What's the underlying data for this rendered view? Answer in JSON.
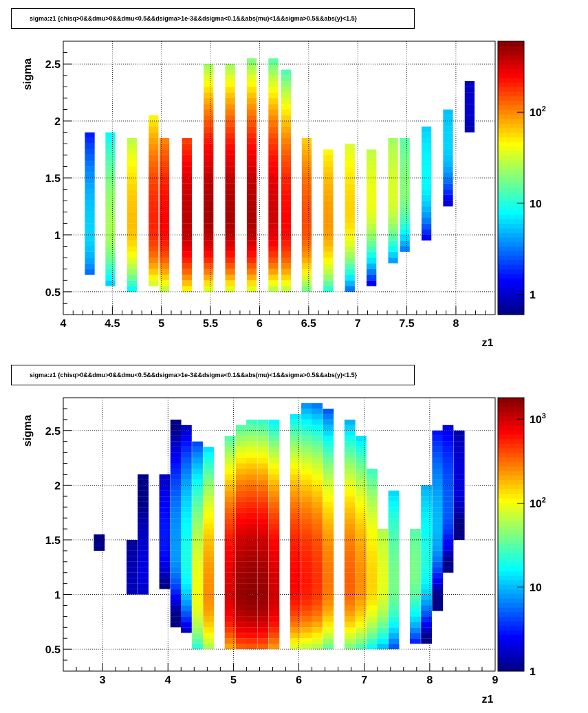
{
  "chart_data": [
    {
      "type": "heatmap",
      "title": "sigma:z1 {chisq>0&&dmu>0&&dmu<0.5&&dsigma>1e-3&&dsigma<0.1&&abs(mu)<1&&sigma>0.5&&abs(y)<1.5}",
      "xlabel": "z1",
      "ylabel": "sigma",
      "xlim": [
        4.0,
        8.4
      ],
      "ylim": [
        0.3,
        2.7
      ],
      "x_ticks": [
        "4",
        "4.5",
        "5",
        "5.5",
        "6",
        "6.5",
        "7",
        "7.5",
        "8"
      ],
      "y_ticks": [
        "0.5",
        "1",
        "1.5",
        "2",
        "2.5"
      ],
      "z_scale": "log",
      "zlim": [
        0.6,
        600
      ],
      "colorbar_ticks": [
        "1",
        "10",
        "10^2"
      ],
      "grid": true,
      "colormap": "jet",
      "columns": [
        {
          "x": 4.27,
          "sigma_min": 0.65,
          "sigma_max": 1.9,
          "peak_sigma": 1.0,
          "peak_count": 6
        },
        {
          "x": 4.48,
          "sigma_min": 0.55,
          "sigma_max": 1.9,
          "peak_sigma": 1.05,
          "peak_count": 25
        },
        {
          "x": 4.7,
          "sigma_min": 0.5,
          "sigma_max": 1.85,
          "peak_sigma": 1.1,
          "peak_count": 70
        },
        {
          "x": 4.92,
          "sigma_min": 0.55,
          "sigma_max": 2.05,
          "peak_sigma": 1.1,
          "peak_count": 200
        },
        {
          "x": 5.03,
          "sigma_min": 0.5,
          "sigma_max": 1.85,
          "peak_sigma": 1.1,
          "peak_count": 250
        },
        {
          "x": 5.26,
          "sigma_min": 0.5,
          "sigma_max": 1.85,
          "peak_sigma": 1.1,
          "peak_count": 400
        },
        {
          "x": 5.48,
          "sigma_min": 0.5,
          "sigma_max": 2.5,
          "peak_sigma": 1.15,
          "peak_count": 450
        },
        {
          "x": 5.7,
          "sigma_min": 0.5,
          "sigma_max": 2.5,
          "peak_sigma": 1.15,
          "peak_count": 450
        },
        {
          "x": 5.92,
          "sigma_min": 0.5,
          "sigma_max": 2.55,
          "peak_sigma": 1.15,
          "peak_count": 450
        },
        {
          "x": 6.14,
          "sigma_min": 0.5,
          "sigma_max": 2.55,
          "peak_sigma": 1.15,
          "peak_count": 350
        },
        {
          "x": 6.27,
          "sigma_min": 0.5,
          "sigma_max": 2.45,
          "peak_sigma": 1.1,
          "peak_count": 250
        },
        {
          "x": 6.48,
          "sigma_min": 0.5,
          "sigma_max": 1.85,
          "peak_sigma": 1.1,
          "peak_count": 150
        },
        {
          "x": 6.7,
          "sigma_min": 0.5,
          "sigma_max": 1.75,
          "peak_sigma": 1.1,
          "peak_count": 90
        },
        {
          "x": 6.92,
          "sigma_min": 0.5,
          "sigma_max": 1.8,
          "peak_sigma": 1.2,
          "peak_count": 60
        },
        {
          "x": 7.14,
          "sigma_min": 0.55,
          "sigma_max": 1.75,
          "peak_sigma": 1.3,
          "peak_count": 40
        },
        {
          "x": 7.36,
          "sigma_min": 0.75,
          "sigma_max": 1.85,
          "peak_sigma": 1.35,
          "peak_count": 35
        },
        {
          "x": 7.48,
          "sigma_min": 0.85,
          "sigma_max": 1.85,
          "peak_sigma": 1.4,
          "peak_count": 20
        },
        {
          "x": 7.7,
          "sigma_min": 0.95,
          "sigma_max": 1.95,
          "peak_sigma": 1.5,
          "peak_count": 8
        },
        {
          "x": 7.92,
          "sigma_min": 1.25,
          "sigma_max": 2.1,
          "peak_sigma": 1.8,
          "peak_count": 6
        },
        {
          "x": 8.14,
          "sigma_min": 1.9,
          "sigma_max": 2.35,
          "peak_sigma": 2.1,
          "peak_count": 1
        }
      ]
    },
    {
      "type": "heatmap",
      "title": "sigma:z1 {chisq>0&&dmu>0&&dmu<0.5&&dsigma>1e-3&&dsigma<0.1&&abs(mu)<1&&sigma>0.5&&abs(y)<1.5}",
      "xlabel": "z1",
      "ylabel": "sigma",
      "xlim": [
        2.4,
        9.0
      ],
      "ylim": [
        0.3,
        2.8
      ],
      "x_ticks": [
        "3",
        "4",
        "5",
        "6",
        "7",
        "8",
        "9"
      ],
      "y_ticks": [
        "0.5",
        "1",
        "1.5",
        "2",
        "2.5"
      ],
      "z_scale": "log",
      "zlim": [
        1,
        1800
      ],
      "colorbar_ticks": [
        "1",
        "10",
        "10^2",
        "10^3"
      ],
      "grid": true,
      "colormap": "jet",
      "columns": [
        {
          "x": 2.95,
          "sigma_min": 1.4,
          "sigma_max": 1.55,
          "peak_sigma": 1.45,
          "peak_count": 1
        },
        {
          "x": 3.45,
          "sigma_min": 1.0,
          "sigma_max": 1.5,
          "peak_sigma": 1.1,
          "peak_count": 1.5
        },
        {
          "x": 3.62,
          "sigma_min": 1.0,
          "sigma_max": 2.1,
          "peak_sigma": 1.2,
          "peak_count": 2
        },
        {
          "x": 3.95,
          "sigma_min": 1.05,
          "sigma_max": 2.1,
          "peak_sigma": 1.5,
          "peak_count": 3
        },
        {
          "x": 4.12,
          "sigma_min": 0.7,
          "sigma_max": 2.6,
          "peak_sigma": 1.4,
          "peak_count": 8
        },
        {
          "x": 4.28,
          "sigma_min": 0.65,
          "sigma_max": 2.55,
          "peak_sigma": 1.3,
          "peak_count": 20
        },
        {
          "x": 4.45,
          "sigma_min": 0.5,
          "sigma_max": 2.4,
          "peak_sigma": 1.0,
          "peak_count": 100
        },
        {
          "x": 4.62,
          "sigma_min": 0.5,
          "sigma_max": 2.35,
          "peak_sigma": 1.0,
          "peak_count": 250
        },
        {
          "x": 4.95,
          "sigma_min": 0.5,
          "sigma_max": 2.45,
          "peak_sigma": 1.0,
          "peak_count": 900
        },
        {
          "x": 5.12,
          "sigma_min": 0.5,
          "sigma_max": 2.55,
          "peak_sigma": 1.0,
          "peak_count": 1500
        },
        {
          "x": 5.28,
          "sigma_min": 0.5,
          "sigma_max": 2.6,
          "peak_sigma": 1.0,
          "peak_count": 1600
        },
        {
          "x": 5.45,
          "sigma_min": 0.5,
          "sigma_max": 2.6,
          "peak_sigma": 1.0,
          "peak_count": 1500
        },
        {
          "x": 5.62,
          "sigma_min": 0.5,
          "sigma_max": 2.6,
          "peak_sigma": 1.0,
          "peak_count": 1000
        },
        {
          "x": 5.95,
          "sigma_min": 0.5,
          "sigma_max": 2.65,
          "peak_sigma": 1.1,
          "peak_count": 700
        },
        {
          "x": 6.12,
          "sigma_min": 0.5,
          "sigma_max": 2.75,
          "peak_sigma": 1.1,
          "peak_count": 600
        },
        {
          "x": 6.28,
          "sigma_min": 0.5,
          "sigma_max": 2.75,
          "peak_sigma": 1.1,
          "peak_count": 500
        },
        {
          "x": 6.45,
          "sigma_min": 0.5,
          "sigma_max": 2.7,
          "peak_sigma": 1.1,
          "peak_count": 300
        },
        {
          "x": 6.78,
          "sigma_min": 0.5,
          "sigma_max": 2.6,
          "peak_sigma": 1.1,
          "peak_count": 350
        },
        {
          "x": 6.95,
          "sigma_min": 0.5,
          "sigma_max": 2.45,
          "peak_sigma": 1.1,
          "peak_count": 250
        },
        {
          "x": 7.12,
          "sigma_min": 0.5,
          "sigma_max": 2.15,
          "peak_sigma": 1.1,
          "peak_count": 150
        },
        {
          "x": 7.28,
          "sigma_min": 0.5,
          "sigma_max": 1.6,
          "peak_sigma": 1.1,
          "peak_count": 90
        },
        {
          "x": 7.45,
          "sigma_min": 0.5,
          "sigma_max": 1.95,
          "peak_sigma": 1.1,
          "peak_count": 40
        },
        {
          "x": 7.78,
          "sigma_min": 0.55,
          "sigma_max": 1.6,
          "peak_sigma": 1.2,
          "peak_count": 40
        },
        {
          "x": 7.95,
          "sigma_min": 0.55,
          "sigma_max": 2.0,
          "peak_sigma": 1.3,
          "peak_count": 20
        },
        {
          "x": 8.12,
          "sigma_min": 0.85,
          "sigma_max": 2.5,
          "peak_sigma": 1.6,
          "peak_count": 10
        },
        {
          "x": 8.28,
          "sigma_min": 1.2,
          "sigma_max": 2.55,
          "peak_sigma": 1.8,
          "peak_count": 5
        },
        {
          "x": 8.45,
          "sigma_min": 1.5,
          "sigma_max": 2.5,
          "peak_sigma": 2.0,
          "peak_count": 2
        }
      ]
    }
  ]
}
